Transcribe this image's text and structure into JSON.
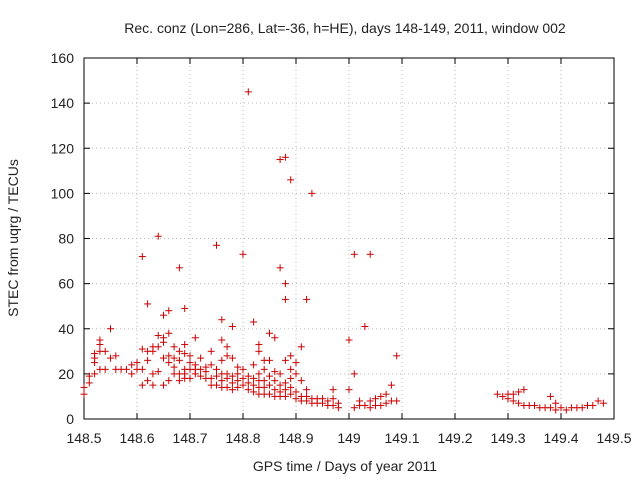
{
  "chart_data": {
    "type": "scatter",
    "title": "Rec. conz (Lon=286, Lat=-36, h=HE), days 148-149, 2011, window 002",
    "xlabel": "GPS time / Days of year 2011",
    "ylabel": "STEC from uqrg / TECUs",
    "xlim": [
      148.5,
      149.5
    ],
    "ylim": [
      0,
      160
    ],
    "x_ticks": [
      148.5,
      148.6,
      148.7,
      148.8,
      148.9,
      149.0,
      149.1,
      149.2,
      149.3,
      149.4,
      149.5
    ],
    "x_tick_labels": [
      "148.5",
      "148.6",
      "148.7",
      "148.8",
      "148.9",
      "149",
      "149.1",
      "149.2",
      "149.3",
      "149.4",
      "149.5"
    ],
    "y_ticks": [
      0,
      20,
      40,
      60,
      80,
      100,
      120,
      140,
      160
    ],
    "y_tick_labels": [
      "0",
      "20",
      "40",
      "60",
      "80",
      "100",
      "120",
      "140",
      "160"
    ],
    "grid": true,
    "marker": "plus",
    "marker_color": "#cc0000",
    "points": [
      [
        148.5,
        11
      ],
      [
        148.5,
        14
      ],
      [
        148.51,
        16
      ],
      [
        148.51,
        19
      ],
      [
        148.52,
        20
      ],
      [
        148.52,
        25
      ],
      [
        148.52,
        27
      ],
      [
        148.52,
        29
      ],
      [
        148.53,
        22
      ],
      [
        148.53,
        30
      ],
      [
        148.53,
        33
      ],
      [
        148.53,
        35
      ],
      [
        148.54,
        22
      ],
      [
        148.54,
        30
      ],
      [
        148.55,
        27
      ],
      [
        148.55,
        40
      ],
      [
        148.56,
        22
      ],
      [
        148.56,
        28
      ],
      [
        148.57,
        22
      ],
      [
        148.58,
        22
      ],
      [
        148.59,
        20
      ],
      [
        148.59,
        24
      ],
      [
        148.6,
        22
      ],
      [
        148.6,
        25
      ],
      [
        148.61,
        15
      ],
      [
        148.61,
        22
      ],
      [
        148.61,
        31
      ],
      [
        148.61,
        72
      ],
      [
        148.62,
        17
      ],
      [
        148.62,
        26
      ],
      [
        148.62,
        30
      ],
      [
        148.62,
        51
      ],
      [
        148.63,
        15
      ],
      [
        148.63,
        20
      ],
      [
        148.63,
        30
      ],
      [
        148.63,
        32
      ],
      [
        148.64,
        21
      ],
      [
        148.64,
        32
      ],
      [
        148.64,
        37
      ],
      [
        148.64,
        81
      ],
      [
        148.65,
        15
      ],
      [
        148.65,
        27
      ],
      [
        148.65,
        34
      ],
      [
        148.65,
        36
      ],
      [
        148.65,
        46
      ],
      [
        148.66,
        17
      ],
      [
        148.66,
        25
      ],
      [
        148.66,
        28
      ],
      [
        148.66,
        38
      ],
      [
        148.66,
        48
      ],
      [
        148.67,
        20
      ],
      [
        148.67,
        23
      ],
      [
        148.67,
        27
      ],
      [
        148.67,
        32
      ],
      [
        148.68,
        17
      ],
      [
        148.68,
        20
      ],
      [
        148.68,
        26
      ],
      [
        148.68,
        30
      ],
      [
        148.68,
        67
      ],
      [
        148.69,
        18
      ],
      [
        148.69,
        20
      ],
      [
        148.69,
        22
      ],
      [
        148.69,
        29
      ],
      [
        148.69,
        33
      ],
      [
        148.69,
        49
      ],
      [
        148.7,
        18
      ],
      [
        148.7,
        22
      ],
      [
        148.7,
        25
      ],
      [
        148.7,
        28
      ],
      [
        148.71,
        20
      ],
      [
        148.71,
        22
      ],
      [
        148.71,
        24
      ],
      [
        148.71,
        36
      ],
      [
        148.72,
        19
      ],
      [
        148.72,
        22
      ],
      [
        148.72,
        27
      ],
      [
        148.73,
        18
      ],
      [
        148.73,
        21
      ],
      [
        148.73,
        23
      ],
      [
        148.74,
        15
      ],
      [
        148.74,
        18
      ],
      [
        148.74,
        24
      ],
      [
        148.74,
        30
      ],
      [
        148.75,
        15
      ],
      [
        148.75,
        19
      ],
      [
        148.75,
        22
      ],
      [
        148.75,
        77
      ],
      [
        148.76,
        14
      ],
      [
        148.76,
        17
      ],
      [
        148.76,
        20
      ],
      [
        148.76,
        26
      ],
      [
        148.76,
        35
      ],
      [
        148.76,
        44
      ],
      [
        148.77,
        14
      ],
      [
        148.77,
        18
      ],
      [
        148.77,
        20
      ],
      [
        148.77,
        28
      ],
      [
        148.77,
        32
      ],
      [
        148.78,
        13
      ],
      [
        148.78,
        16
      ],
      [
        148.78,
        19
      ],
      [
        148.78,
        27
      ],
      [
        148.78,
        41
      ],
      [
        148.79,
        14
      ],
      [
        148.79,
        17
      ],
      [
        148.79,
        20
      ],
      [
        148.79,
        23
      ],
      [
        148.8,
        15
      ],
      [
        148.8,
        18
      ],
      [
        148.8,
        22
      ],
      [
        148.8,
        73
      ],
      [
        148.81,
        13
      ],
      [
        148.81,
        16
      ],
      [
        148.81,
        19
      ],
      [
        148.81,
        145
      ],
      [
        148.82,
        12
      ],
      [
        148.82,
        15
      ],
      [
        148.82,
        18
      ],
      [
        148.82,
        24
      ],
      [
        148.82,
        43
      ],
      [
        148.83,
        11
      ],
      [
        148.83,
        14
      ],
      [
        148.83,
        17
      ],
      [
        148.83,
        20
      ],
      [
        148.83,
        30
      ],
      [
        148.83,
        33
      ],
      [
        148.84,
        11
      ],
      [
        148.84,
        14
      ],
      [
        148.84,
        17
      ],
      [
        148.84,
        22
      ],
      [
        148.84,
        26
      ],
      [
        148.85,
        11
      ],
      [
        148.85,
        15
      ],
      [
        148.85,
        19
      ],
      [
        148.85,
        26
      ],
      [
        148.85,
        38
      ],
      [
        148.86,
        10
      ],
      [
        148.86,
        13
      ],
      [
        148.86,
        17
      ],
      [
        148.86,
        21
      ],
      [
        148.86,
        36
      ],
      [
        148.87,
        10
      ],
      [
        148.87,
        12
      ],
      [
        148.87,
        15
      ],
      [
        148.87,
        20
      ],
      [
        148.87,
        67
      ],
      [
        148.87,
        115
      ],
      [
        148.88,
        10
      ],
      [
        148.88,
        13
      ],
      [
        148.88,
        16
      ],
      [
        148.88,
        26
      ],
      [
        148.88,
        53
      ],
      [
        148.88,
        60
      ],
      [
        148.88,
        116
      ],
      [
        148.89,
        11
      ],
      [
        148.89,
        14
      ],
      [
        148.89,
        18
      ],
      [
        148.89,
        22
      ],
      [
        148.89,
        28
      ],
      [
        148.89,
        106
      ],
      [
        148.9,
        9
      ],
      [
        148.9,
        12
      ],
      [
        148.9,
        20
      ],
      [
        148.9,
        25
      ],
      [
        148.91,
        8
      ],
      [
        148.91,
        10
      ],
      [
        148.91,
        17
      ],
      [
        148.91,
        32
      ],
      [
        148.92,
        8
      ],
      [
        148.92,
        10
      ],
      [
        148.92,
        13
      ],
      [
        148.92,
        53
      ],
      [
        148.93,
        7
      ],
      [
        148.93,
        9
      ],
      [
        148.93,
        100
      ],
      [
        148.94,
        7
      ],
      [
        148.94,
        9
      ],
      [
        148.95,
        7
      ],
      [
        148.95,
        9
      ],
      [
        148.96,
        6
      ],
      [
        148.96,
        8
      ],
      [
        148.97,
        6
      ],
      [
        148.97,
        9
      ],
      [
        148.97,
        13
      ],
      [
        148.98,
        5
      ],
      [
        148.98,
        7
      ],
      [
        149.0,
        35
      ],
      [
        149.0,
        13
      ],
      [
        149.01,
        5
      ],
      [
        149.01,
        20
      ],
      [
        149.01,
        73
      ],
      [
        149.02,
        6
      ],
      [
        149.02,
        8
      ],
      [
        149.03,
        6
      ],
      [
        149.03,
        41
      ],
      [
        149.04,
        5
      ],
      [
        149.04,
        8
      ],
      [
        149.04,
        73
      ],
      [
        149.05,
        6
      ],
      [
        149.05,
        9
      ],
      [
        149.06,
        6
      ],
      [
        149.06,
        10
      ],
      [
        149.07,
        7
      ],
      [
        149.07,
        11
      ],
      [
        149.08,
        8
      ],
      [
        149.08,
        15
      ],
      [
        149.09,
        8
      ],
      [
        149.09,
        28
      ],
      [
        149.28,
        11
      ],
      [
        149.29,
        10
      ],
      [
        149.3,
        9
      ],
      [
        149.3,
        11
      ],
      [
        149.31,
        8
      ],
      [
        149.31,
        11
      ],
      [
        149.32,
        7
      ],
      [
        149.32,
        12
      ],
      [
        149.33,
        6
      ],
      [
        149.33,
        13
      ],
      [
        149.34,
        6
      ],
      [
        149.35,
        6
      ],
      [
        149.36,
        5
      ],
      [
        149.37,
        5
      ],
      [
        149.38,
        10
      ],
      [
        149.38,
        5
      ],
      [
        149.39,
        7
      ],
      [
        149.39,
        4
      ],
      [
        149.4,
        5
      ],
      [
        149.41,
        4
      ],
      [
        149.42,
        5
      ],
      [
        149.43,
        5
      ],
      [
        149.44,
        5
      ],
      [
        149.45,
        6
      ],
      [
        149.46,
        6
      ],
      [
        149.47,
        8
      ],
      [
        149.48,
        7
      ]
    ]
  }
}
